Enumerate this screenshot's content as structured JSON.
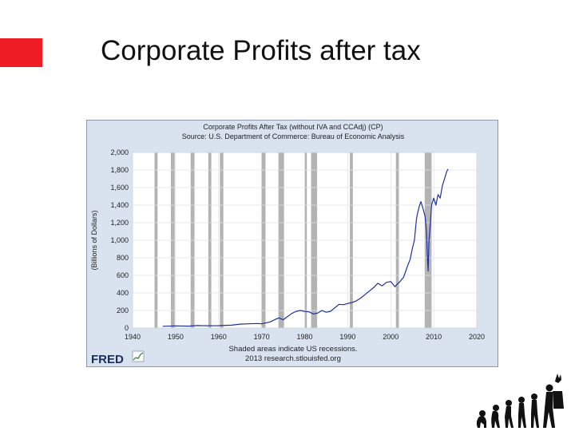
{
  "slide": {
    "title": "Corporate Profits after tax",
    "accent_color": "#ee1c24"
  },
  "branding": {
    "logo_text": "FRED",
    "logo_color": "#1a2d5c",
    "logo_icon": "mini-line-chart-icon"
  },
  "decoration": {
    "icon": "human-evolution-icon"
  },
  "chart_data": {
    "type": "line",
    "title": "Corporate Profits After Tax (without IVA and CCAdj) (CP)",
    "subtitle": "Source: U.S. Department of Commerce: Bureau of Economic Analysis",
    "xlabel": "",
    "ylabel": "(Billions of Dollars)",
    "xlim": [
      1940,
      2020
    ],
    "ylim": [
      0,
      2000
    ],
    "x_ticks": [
      1940,
      1950,
      1960,
      1970,
      1980,
      1990,
      2000,
      2010,
      2020
    ],
    "y_ticks": [
      0,
      200,
      400,
      600,
      800,
      1000,
      1200,
      1400,
      1600,
      1800,
      2000
    ],
    "y_tick_labels": [
      "0",
      "200",
      "400",
      "600",
      "800",
      "1,000",
      "1,200",
      "1,400",
      "1,600",
      "1,800",
      "2,000"
    ],
    "grid": true,
    "line_color": "#1f2fa0",
    "recession_color": "#b3b3b3",
    "note_lines": [
      "Shaded areas indicate US recessions.",
      "2013 research.stlouisfed.org"
    ],
    "recessions": [
      [
        1945.1,
        1945.8
      ],
      [
        1948.9,
        1949.8
      ],
      [
        1953.5,
        1954.4
      ],
      [
        1957.6,
        1958.3
      ],
      [
        1960.3,
        1961.1
      ],
      [
        1969.9,
        1970.9
      ],
      [
        1973.9,
        1975.2
      ],
      [
        1980.0,
        1980.5
      ],
      [
        1981.5,
        1982.9
      ],
      [
        1990.5,
        1991.2
      ],
      [
        2001.2,
        2001.9
      ],
      [
        2007.9,
        2009.5
      ]
    ],
    "series": [
      {
        "x": [
          1947,
          1950,
          1953,
          1955,
          1957,
          1960,
          1963,
          1965,
          1967,
          1969,
          1970,
          1972,
          1973,
          1974,
          1975,
          1977,
          1978,
          1979,
          1980,
          1981,
          1982,
          1983,
          1984,
          1985,
          1986,
          1987,
          1988,
          1989,
          1990,
          1991,
          1992,
          1993,
          1994,
          1995,
          1996,
          1997,
          1998,
          1999,
          2000,
          2001,
          2001.5,
          2002,
          2002.5,
          2003,
          2003.5,
          2004,
          2004.5,
          2005,
          2005.5,
          2006,
          2006.3,
          2006.6,
          2007,
          2007.5,
          2008,
          2008.3,
          2008.5,
          2008.7,
          2008.9,
          2009.2,
          2009.5,
          2010,
          2010.5,
          2011,
          2011.5,
          2012,
          2012.5,
          2013,
          2013.3
        ],
        "y": [
          20,
          25,
          22,
          28,
          26,
          27,
          33,
          45,
          48,
          52,
          48,
          70,
          95,
          115,
          95,
          165,
          190,
          200,
          190,
          185,
          160,
          170,
          200,
          180,
          190,
          230,
          270,
          265,
          280,
          290,
          310,
          340,
          380,
          420,
          460,
          510,
          480,
          520,
          530,
          470,
          500,
          520,
          550,
          580,
          650,
          720,
          780,
          900,
          1000,
          1250,
          1320,
          1380,
          1440,
          1360,
          1270,
          1100,
          850,
          650,
          1000,
          1180,
          1400,
          1480,
          1400,
          1520,
          1480,
          1620,
          1700,
          1780,
          1810
        ]
      }
    ]
  }
}
